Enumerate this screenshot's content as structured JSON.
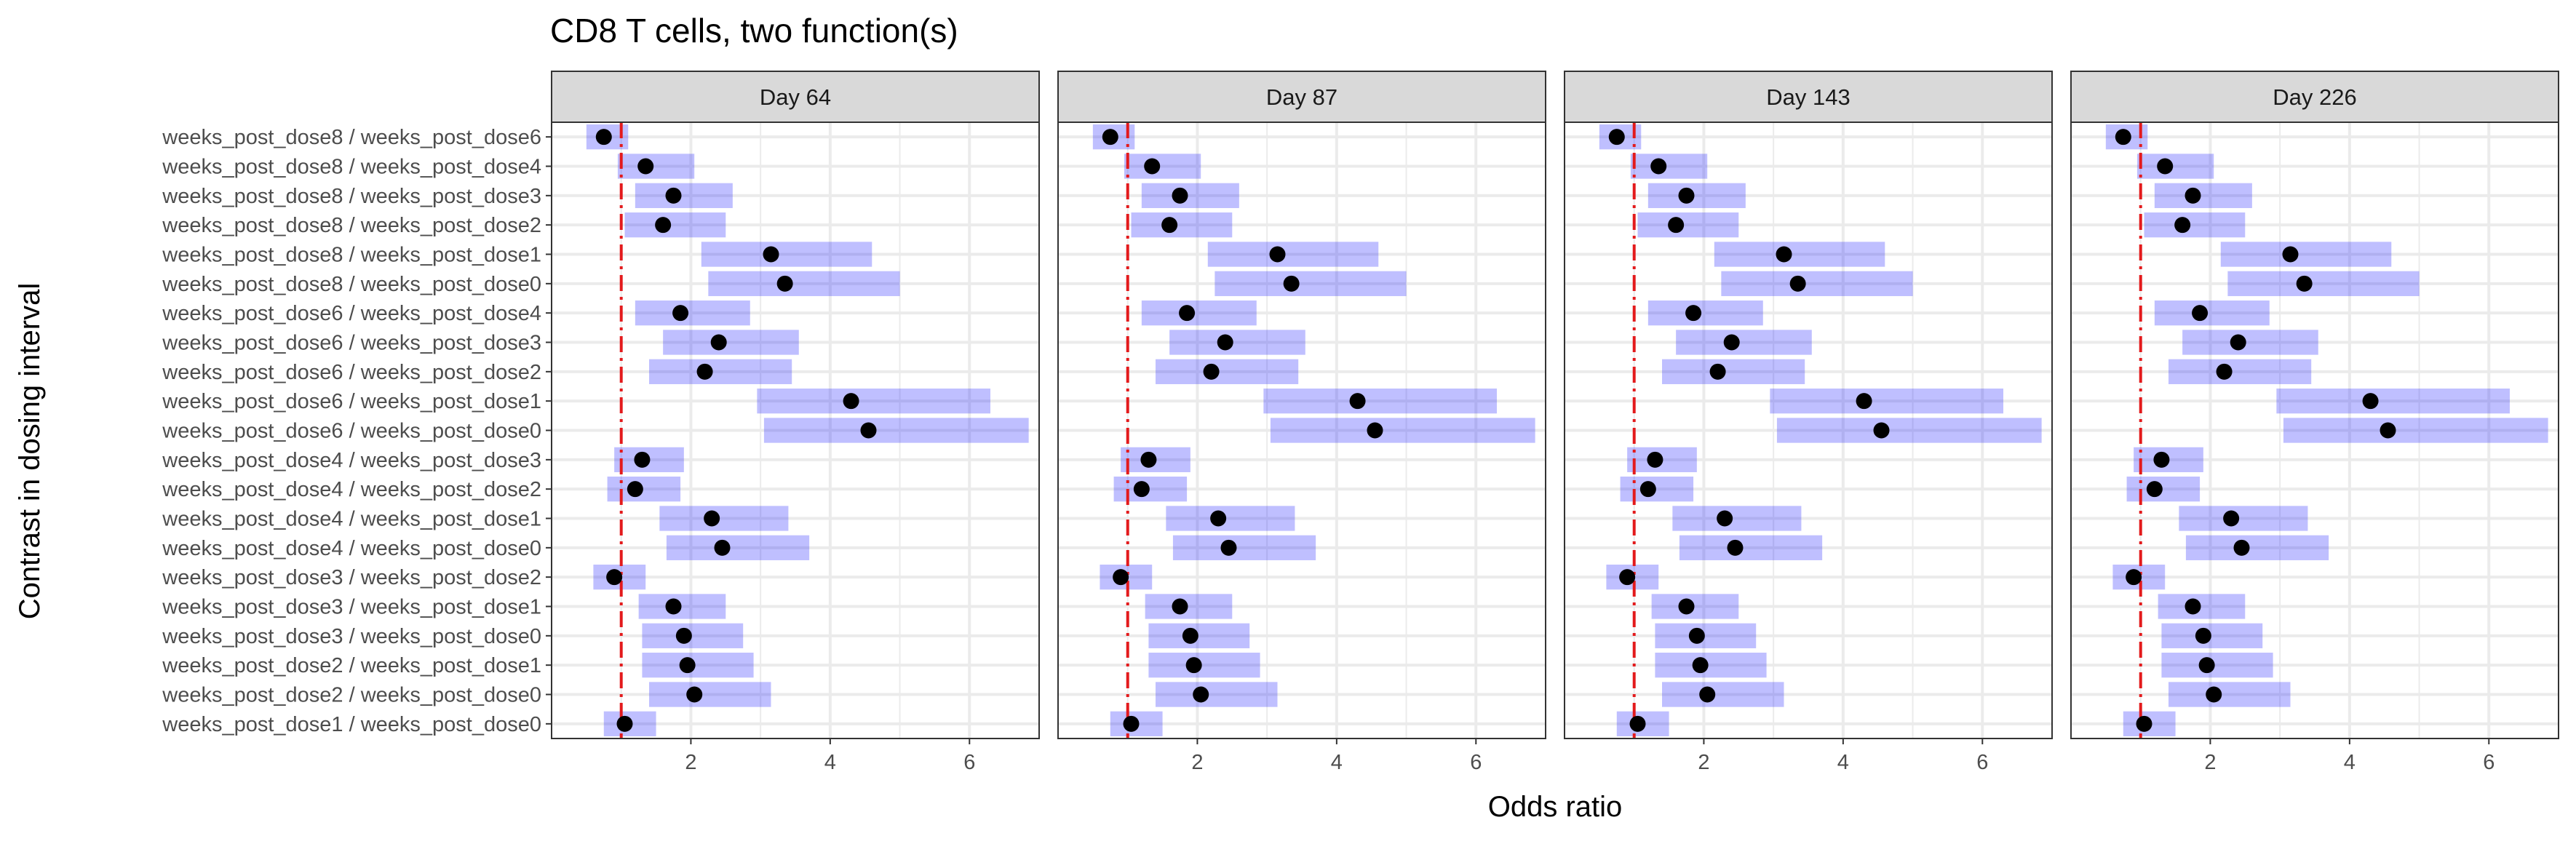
{
  "chart_data": {
    "type": "forest",
    "title": "CD8 T cells, two function(s)",
    "xlabel": "Odds ratio",
    "ylabel": "Contrast in dosing interval",
    "xlim": [
      0,
      7.0
    ],
    "x_ticks": [
      2,
      4,
      6
    ],
    "grid": true,
    "reference_line": 1,
    "colors": {
      "interval": "#0000ff",
      "interval_opacity": 0.25,
      "point": "#000000",
      "reference": "#e31a1c",
      "strip": "#d9d9d9",
      "grid": "#ebebeb"
    },
    "panels": [
      "Day 64",
      "Day 87",
      "Day 143",
      "Day 226"
    ],
    "categories": [
      "weeks_post_dose8 / weeks_post_dose6",
      "weeks_post_dose8 / weeks_post_dose4",
      "weeks_post_dose8 / weeks_post_dose3",
      "weeks_post_dose8 / weeks_post_dose2",
      "weeks_post_dose8 / weeks_post_dose1",
      "weeks_post_dose8 / weeks_post_dose0",
      "weeks_post_dose6 / weeks_post_dose4",
      "weeks_post_dose6 / weeks_post_dose3",
      "weeks_post_dose6 / weeks_post_dose2",
      "weeks_post_dose6 / weeks_post_dose1",
      "weeks_post_dose6 / weeks_post_dose0",
      "weeks_post_dose4 / weeks_post_dose3",
      "weeks_post_dose4 / weeks_post_dose2",
      "weeks_post_dose4 / weeks_post_dose1",
      "weeks_post_dose4 / weeks_post_dose0",
      "weeks_post_dose3 / weeks_post_dose2",
      "weeks_post_dose3 / weeks_post_dose1",
      "weeks_post_dose3 / weeks_post_dose0",
      "weeks_post_dose2 / weeks_post_dose1",
      "weeks_post_dose2 / weeks_post_dose0",
      "weeks_post_dose1 / weeks_post_dose0"
    ],
    "estimates": [
      0.75,
      1.35,
      1.75,
      1.6,
      3.15,
      3.35,
      1.85,
      2.4,
      2.2,
      4.3,
      4.55,
      1.3,
      1.2,
      2.3,
      2.45,
      0.9,
      1.75,
      1.9,
      1.95,
      2.05,
      1.05
    ],
    "lower": [
      0.5,
      0.95,
      1.2,
      1.05,
      2.15,
      2.25,
      1.2,
      1.6,
      1.4,
      2.95,
      3.05,
      0.9,
      0.8,
      1.55,
      1.65,
      0.6,
      1.25,
      1.3,
      1.3,
      1.4,
      0.75
    ],
    "upper": [
      1.1,
      2.05,
      2.6,
      2.5,
      4.6,
      5.0,
      2.85,
      3.55,
      3.45,
      6.3,
      6.85,
      1.9,
      1.85,
      3.4,
      3.7,
      1.35,
      2.5,
      2.75,
      2.9,
      3.15,
      1.5
    ]
  }
}
